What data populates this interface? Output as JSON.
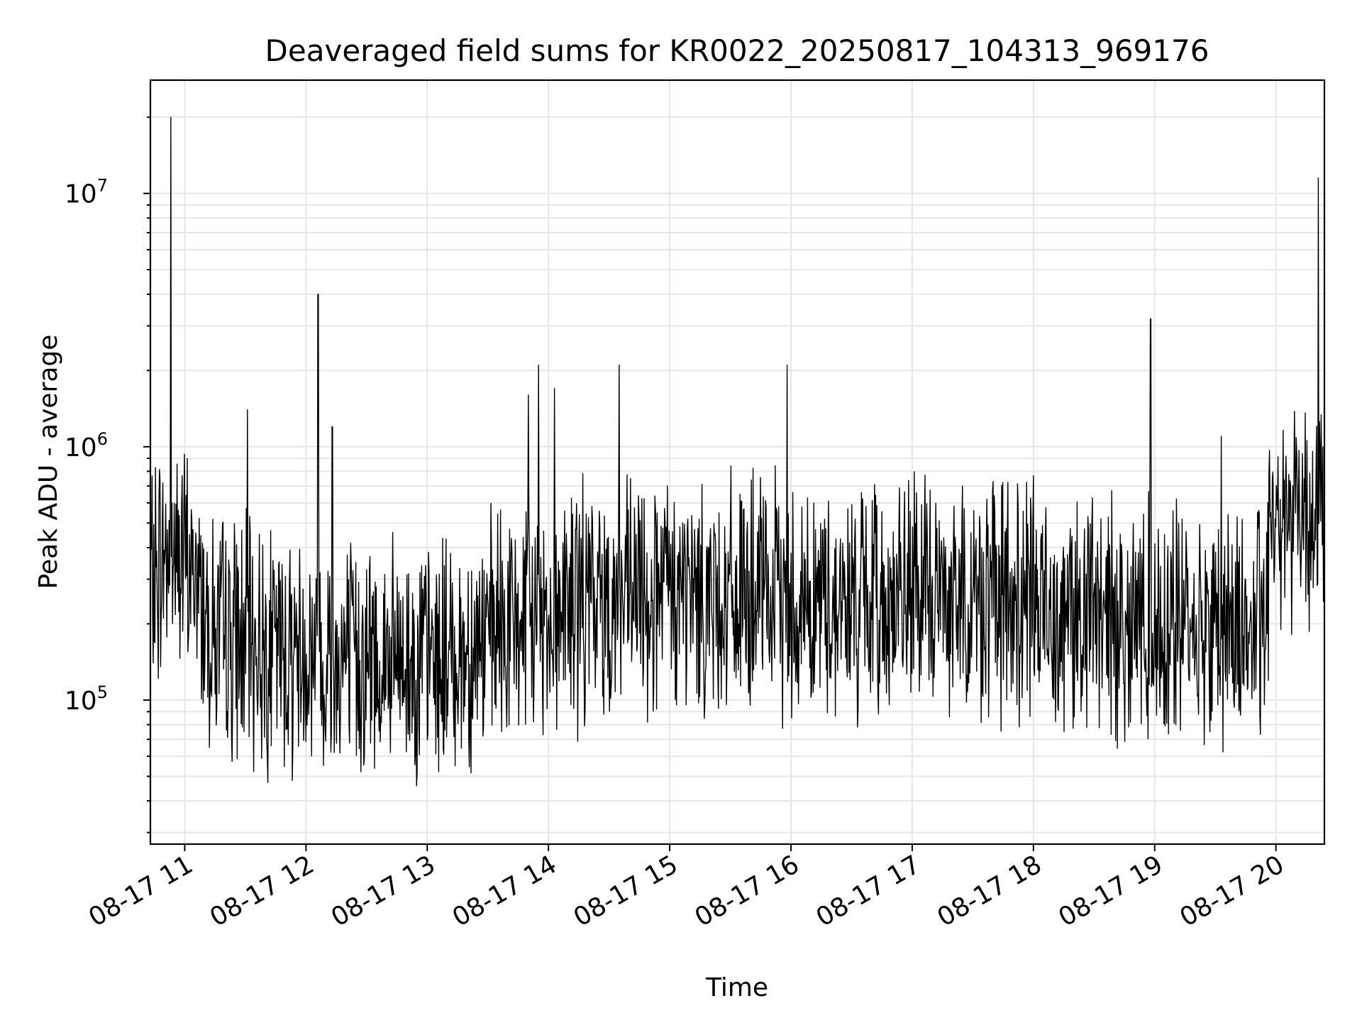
{
  "chart_data": {
    "type": "line",
    "title": "Deaveraged field sums for KR0022_20250817_104313_969176",
    "xlabel": "Time",
    "ylabel": "Peak ADU - average",
    "x_axis": {
      "kind": "date",
      "range": [
        "2025-08-17 10:43",
        "2025-08-17 20:24"
      ],
      "ticks": [
        {
          "value": "2025-08-17 11:00",
          "label": "08-17 11"
        },
        {
          "value": "2025-08-17 12:00",
          "label": "08-17 12"
        },
        {
          "value": "2025-08-17 13:00",
          "label": "08-17 13"
        },
        {
          "value": "2025-08-17 14:00",
          "label": "08-17 14"
        },
        {
          "value": "2025-08-17 15:00",
          "label": "08-17 15"
        },
        {
          "value": "2025-08-17 16:00",
          "label": "08-17 16"
        },
        {
          "value": "2025-08-17 17:00",
          "label": "08-17 17"
        },
        {
          "value": "2025-08-17 18:00",
          "label": "08-17 18"
        },
        {
          "value": "2025-08-17 19:00",
          "label": "08-17 19"
        },
        {
          "value": "2025-08-17 20:00",
          "label": "08-17 20"
        }
      ]
    },
    "y_axis": {
      "scale": "log",
      "range": [
        27000,
        28000000
      ],
      "ticks": [
        {
          "value": 100000,
          "base": "10",
          "exp": "5"
        },
        {
          "value": 1000000,
          "base": "10",
          "exp": "6"
        },
        {
          "value": 10000000,
          "base": "10",
          "exp": "7"
        }
      ]
    },
    "grid": true,
    "line_color": "#000000",
    "grid_color": "#e6e6e6",
    "series": [
      {
        "baseline_segments": [
          {
            "t": "2025-08-17 10:43",
            "v": 280000
          },
          {
            "t": "2025-08-17 10:53",
            "v": 420000
          },
          {
            "t": "2025-08-17 11:05",
            "v": 300000
          },
          {
            "t": "2025-08-17 11:15",
            "v": 180000
          },
          {
            "t": "2025-08-17 11:45",
            "v": 160000
          },
          {
            "t": "2025-08-17 12:15",
            "v": 150000
          },
          {
            "t": "2025-08-17 12:45",
            "v": 140000
          },
          {
            "t": "2025-08-17 13:15",
            "v": 150000
          },
          {
            "t": "2025-08-17 13:45",
            "v": 200000
          },
          {
            "t": "2025-08-17 14:15",
            "v": 240000
          },
          {
            "t": "2025-08-17 15:00",
            "v": 260000
          },
          {
            "t": "2025-08-17 15:45",
            "v": 250000
          },
          {
            "t": "2025-08-17 16:30",
            "v": 240000
          },
          {
            "t": "2025-08-17 17:15",
            "v": 260000
          },
          {
            "t": "2025-08-17 18:00",
            "v": 240000
          },
          {
            "t": "2025-08-17 18:45",
            "v": 210000
          },
          {
            "t": "2025-08-17 19:30",
            "v": 200000
          },
          {
            "t": "2025-08-17 19:55",
            "v": 190000
          },
          {
            "t": "2025-08-17 19:57",
            "v": 540000
          },
          {
            "t": "2025-08-17 20:10",
            "v": 620000
          },
          {
            "t": "2025-08-17 20:24",
            "v": 520000
          }
        ],
        "spikes": [
          {
            "t": "2025-08-17 10:53",
            "v": 20000000
          },
          {
            "t": "2025-08-17 11:31",
            "v": 1400000
          },
          {
            "t": "2025-08-17 12:06",
            "v": 4000000
          },
          {
            "t": "2025-08-17 12:13",
            "v": 1200000
          },
          {
            "t": "2025-08-17 13:50",
            "v": 1600000
          },
          {
            "t": "2025-08-17 13:55",
            "v": 2100000
          },
          {
            "t": "2025-08-17 14:03",
            "v": 1700000
          },
          {
            "t": "2025-08-17 14:35",
            "v": 2100000
          },
          {
            "t": "2025-08-17 15:58",
            "v": 2100000
          },
          {
            "t": "2025-08-17 18:58",
            "v": 3200000
          },
          {
            "t": "2025-08-17 19:33",
            "v": 1100000
          },
          {
            "t": "2025-08-17 20:21",
            "v": 11500000
          }
        ]
      }
    ]
  }
}
